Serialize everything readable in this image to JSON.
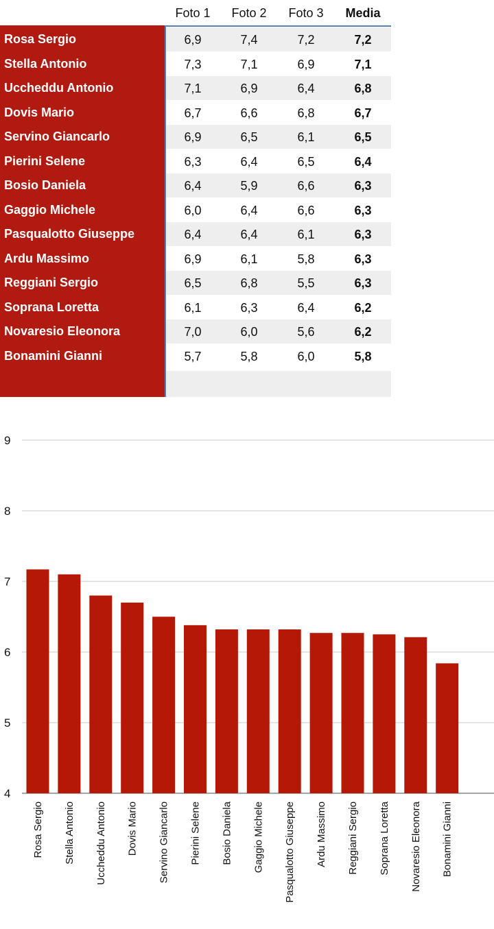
{
  "table": {
    "headers": [
      "Foto 1",
      "Foto 2",
      "Foto 3",
      "Media"
    ],
    "rows": [
      {
        "name": "Rosa Sergio",
        "f1": "6,9",
        "f2": "7,4",
        "f3": "7,2",
        "media": "7,2"
      },
      {
        "name": "Stella Antonio",
        "f1": "7,3",
        "f2": "7,1",
        "f3": "6,9",
        "media": "7,1"
      },
      {
        "name": "Uccheddu Antonio",
        "f1": "7,1",
        "f2": "6,9",
        "f3": "6,4",
        "media": "6,8"
      },
      {
        "name": "Dovis Mario",
        "f1": "6,7",
        "f2": "6,6",
        "f3": "6,8",
        "media": "6,7"
      },
      {
        "name": "Servino Giancarlo",
        "f1": "6,9",
        "f2": "6,5",
        "f3": "6,1",
        "media": "6,5"
      },
      {
        "name": "Pierini Selene",
        "f1": "6,3",
        "f2": "6,4",
        "f3": "6,5",
        "media": "6,4"
      },
      {
        "name": "Bosio Daniela",
        "f1": "6,4",
        "f2": "5,9",
        "f3": "6,6",
        "media": "6,3"
      },
      {
        "name": "Gaggio Michele",
        "f1": "6,0",
        "f2": "6,4",
        "f3": "6,6",
        "media": "6,3"
      },
      {
        "name": "Pasqualotto Giuseppe",
        "f1": "6,4",
        "f2": "6,4",
        "f3": "6,1",
        "media": "6,3"
      },
      {
        "name": "Ardu Massimo",
        "f1": "6,9",
        "f2": "6,1",
        "f3": "5,8",
        "media": "6,3"
      },
      {
        "name": "Reggiani Sergio",
        "f1": "6,5",
        "f2": "6,8",
        "f3": "5,5",
        "media": "6,3"
      },
      {
        "name": "Soprana Loretta",
        "f1": "6,1",
        "f2": "6,3",
        "f3": "6,4",
        "media": "6,2"
      },
      {
        "name": "Novaresio Eleonora",
        "f1": "7,0",
        "f2": "6,0",
        "f3": "5,6",
        "media": "6,2"
      },
      {
        "name": "Bonamini Gianni",
        "f1": "5,7",
        "f2": "5,8",
        "f3": "6,0",
        "media": "5,8"
      }
    ]
  },
  "chart_data": {
    "type": "bar",
    "title": "",
    "xlabel": "",
    "ylabel": "",
    "ylim": [
      4,
      9
    ],
    "yticks": [
      4,
      5,
      6,
      7,
      8,
      9
    ],
    "grid": true,
    "categories": [
      "Rosa Sergio",
      "Stella Antonio",
      "Uccheddu Antonio",
      "Dovis Mario",
      "Servino Giancarlo",
      "Pierini Selene",
      "Bosio Daniela",
      "Gaggio Michele",
      "Pasqualotto Giuseppe",
      "Ardu Massimo",
      "Reggiani Sergio",
      "Soprana Loretta",
      "Novaresio Eleonora",
      "Bonamini Gianni"
    ],
    "values": [
      7.17,
      7.1,
      6.8,
      6.7,
      6.5,
      6.38,
      6.32,
      6.32,
      6.32,
      6.27,
      6.27,
      6.25,
      6.21,
      5.84
    ]
  },
  "colors": {
    "bar": "#b51806",
    "name_column": "#b01a10",
    "grid": "#c8c8c8",
    "axis": "#888888",
    "row_stripe": "#efeeef",
    "header_line": "#5a7fb5"
  }
}
